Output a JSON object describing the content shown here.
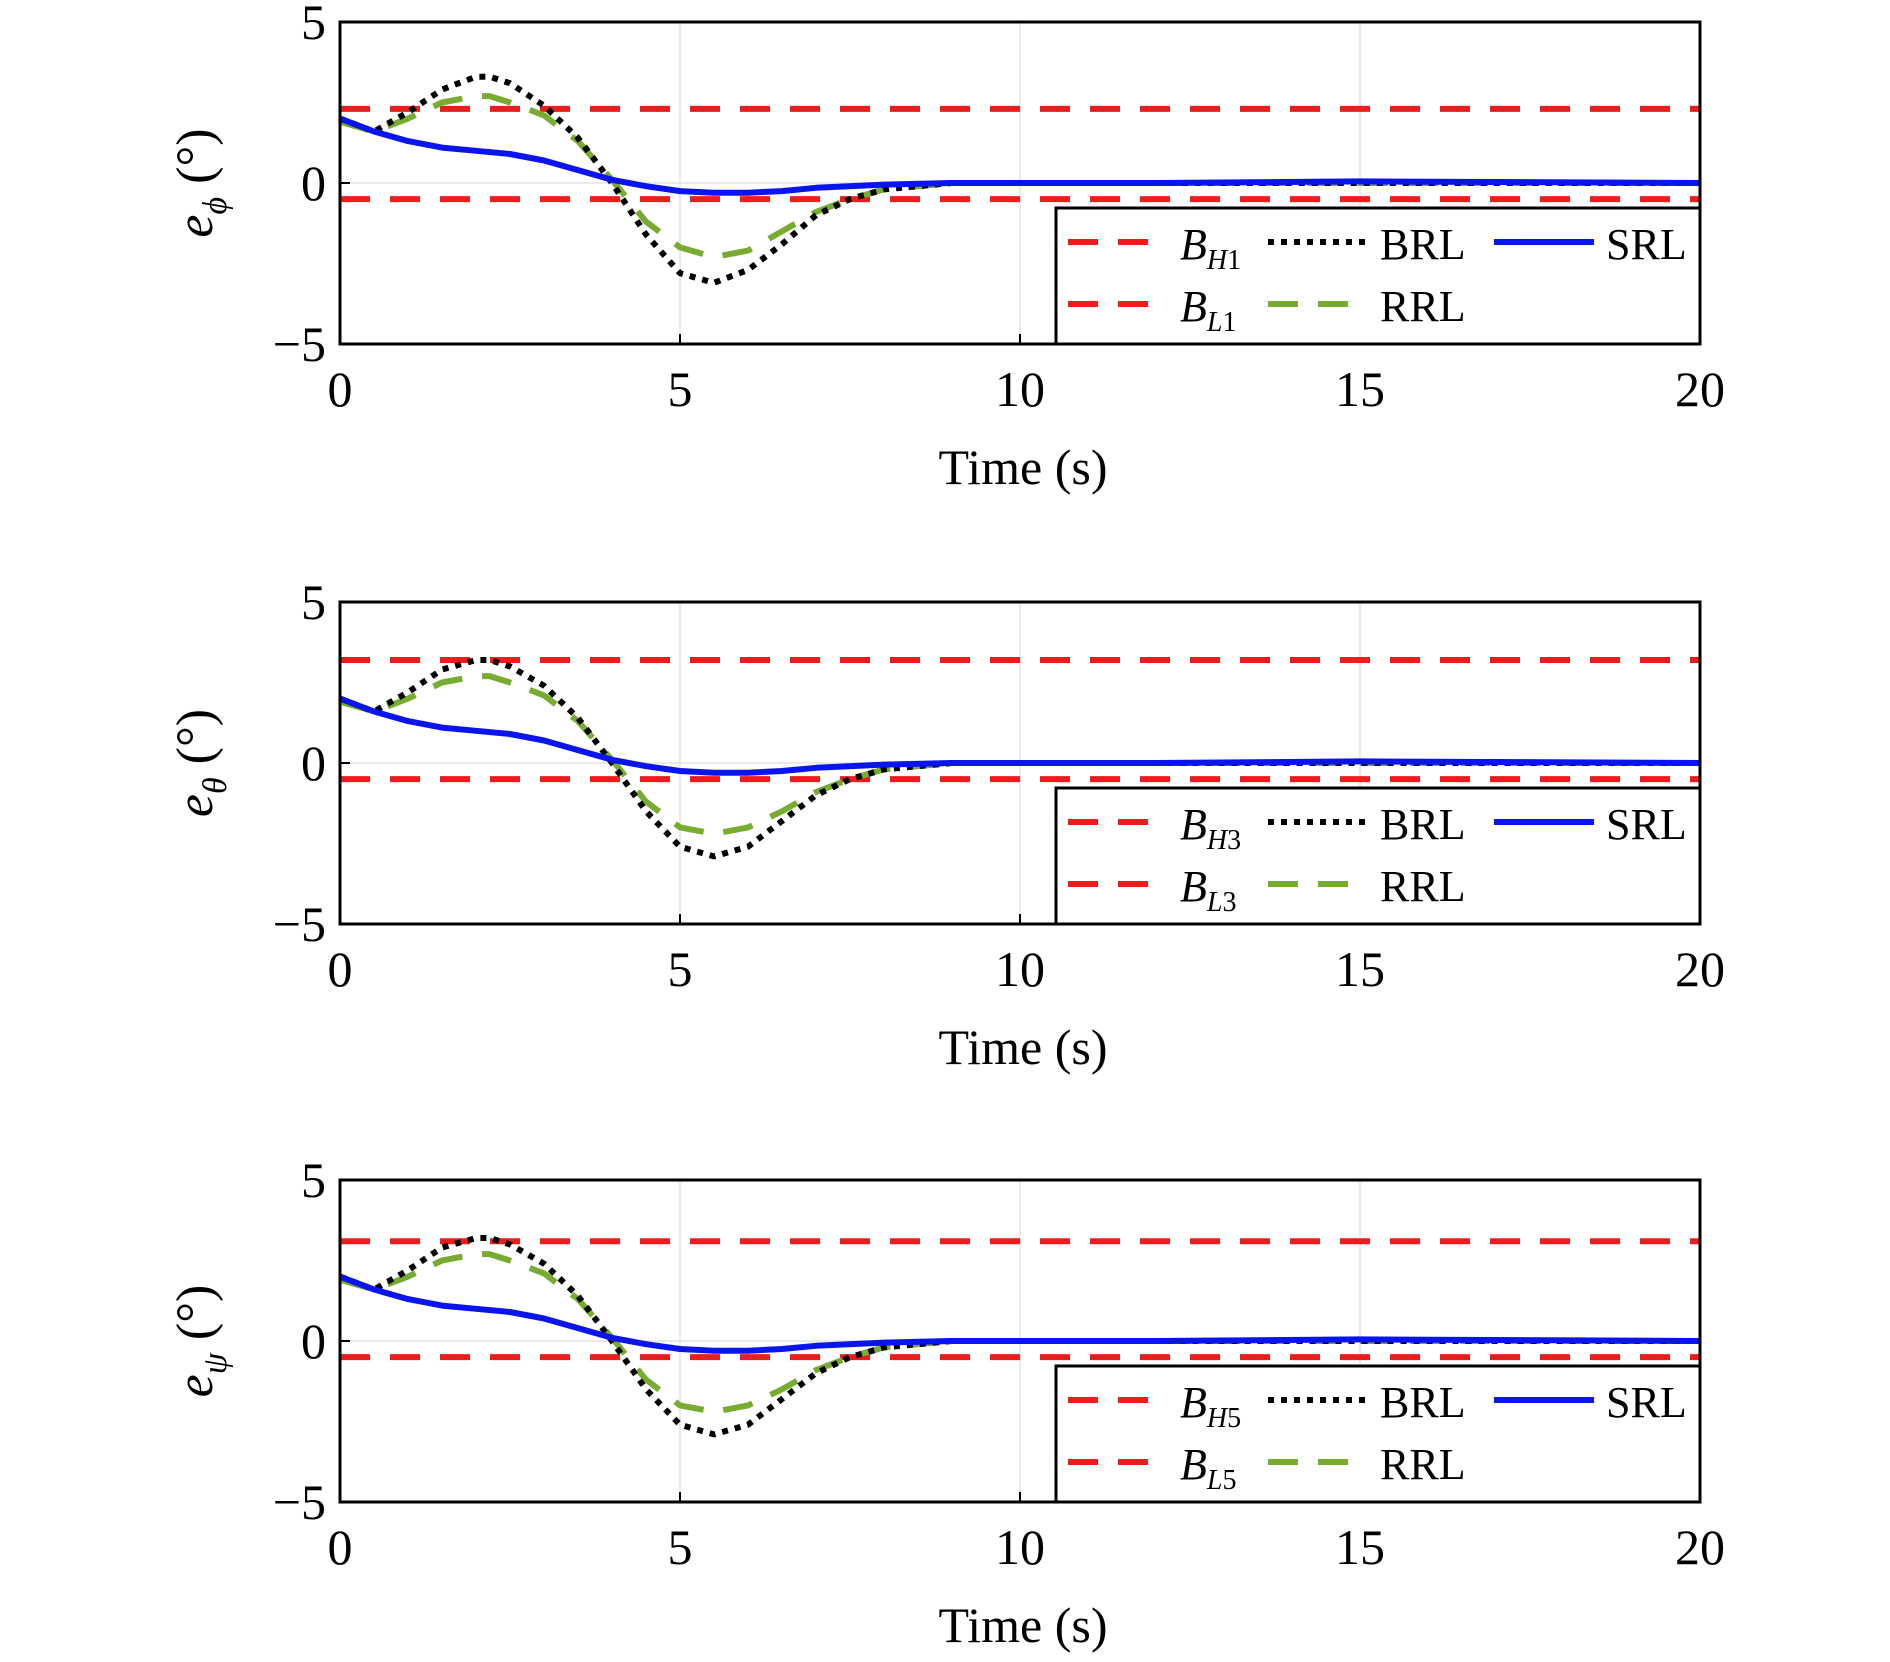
{
  "chart_data": [
    {
      "type": "line",
      "xlabel": "Time (s)",
      "ylabel": {
        "symbol": "e",
        "subscript": "ϕ",
        "unit": "(°)"
      },
      "xlim": [
        0,
        20
      ],
      "ylim": [
        -5,
        5
      ],
      "xticks": [
        "0",
        "5",
        "10",
        "15",
        "20"
      ],
      "yticks": [
        "5",
        "0",
        "−5"
      ],
      "grid": true,
      "legend_position": "bottom-right",
      "series": [
        {
          "name": "B",
          "name_sub": "H1",
          "style": "dashed",
          "color": "#ee1c1c",
          "x": [
            0,
            20
          ],
          "y": [
            2.3,
            2.3
          ]
        },
        {
          "name": "B",
          "name_sub": "L1",
          "style": "dashed",
          "color": "#ee1c1c",
          "x": [
            0,
            20
          ],
          "y": [
            -0.5,
            -0.5
          ]
        },
        {
          "name": "BRL",
          "style": "dotted",
          "color": "#000000",
          "x": [
            0,
            0.5,
            1,
            1.5,
            2,
            2.2,
            2.5,
            3,
            3.5,
            4,
            4.5,
            5,
            5.5,
            6,
            6.5,
            7,
            7.5,
            8,
            9,
            10,
            12,
            15,
            20
          ],
          "y": [
            2.0,
            1.6,
            2.2,
            2.9,
            3.3,
            3.3,
            3.1,
            2.4,
            1.4,
            0.0,
            -1.6,
            -2.8,
            -3.1,
            -2.7,
            -1.9,
            -1.0,
            -0.5,
            -0.2,
            0.0,
            0.0,
            0.0,
            0.0,
            0.0
          ]
        },
        {
          "name": "RRL",
          "style": "dashed",
          "color": "#77ac30",
          "x": [
            0,
            0.5,
            1,
            1.5,
            2,
            2.2,
            2.5,
            3,
            3.5,
            4,
            4.5,
            5,
            5.5,
            6,
            6.5,
            7,
            7.5,
            8,
            9,
            10,
            12,
            15,
            20
          ],
          "y": [
            1.9,
            1.6,
            2.0,
            2.5,
            2.7,
            2.7,
            2.5,
            2.1,
            1.3,
            0.1,
            -1.2,
            -2.0,
            -2.3,
            -2.1,
            -1.5,
            -0.9,
            -0.5,
            -0.2,
            0.0,
            0.0,
            0.0,
            0.0,
            0.0
          ]
        },
        {
          "name": "SRL",
          "style": "solid",
          "color": "#0a14ee",
          "x": [
            0,
            0.5,
            1,
            1.5,
            2,
            2.5,
            3,
            3.5,
            4,
            4.5,
            5,
            5.5,
            6,
            6.5,
            7,
            8,
            9,
            10,
            12,
            15,
            20
          ],
          "y": [
            2.0,
            1.6,
            1.3,
            1.1,
            1.0,
            0.9,
            0.7,
            0.4,
            0.1,
            -0.1,
            -0.25,
            -0.3,
            -0.3,
            -0.25,
            -0.15,
            -0.05,
            0.0,
            0.0,
            0.0,
            0.05,
            0.0
          ]
        }
      ]
    },
    {
      "type": "line",
      "xlabel": "Time (s)",
      "ylabel": {
        "symbol": "e",
        "subscript": "θ",
        "unit": "(°)"
      },
      "xlim": [
        0,
        20
      ],
      "ylim": [
        -5,
        5
      ],
      "xticks": [
        "0",
        "5",
        "10",
        "15",
        "20"
      ],
      "yticks": [
        "5",
        "0",
        "−5"
      ],
      "grid": true,
      "legend_position": "bottom-right",
      "series": [
        {
          "name": "B",
          "name_sub": "H3",
          "style": "dashed",
          "color": "#ee1c1c",
          "x": [
            0,
            20
          ],
          "y": [
            3.2,
            3.2
          ]
        },
        {
          "name": "B",
          "name_sub": "L3",
          "style": "dashed",
          "color": "#ee1c1c",
          "x": [
            0,
            20
          ],
          "y": [
            -0.5,
            -0.5
          ]
        },
        {
          "name": "BRL",
          "style": "dotted",
          "color": "#000000",
          "x": [
            0,
            0.5,
            1,
            1.5,
            2,
            2.2,
            2.5,
            3,
            3.5,
            4,
            4.5,
            5,
            5.5,
            6,
            6.5,
            7,
            7.5,
            8,
            9,
            10,
            12,
            15,
            20
          ],
          "y": [
            2.0,
            1.6,
            2.2,
            2.9,
            3.2,
            3.2,
            3.0,
            2.4,
            1.4,
            0.0,
            -1.5,
            -2.6,
            -2.9,
            -2.6,
            -1.8,
            -1.0,
            -0.5,
            -0.2,
            0.0,
            0.0,
            0.0,
            0.0,
            0.0
          ]
        },
        {
          "name": "RRL",
          "style": "dashed",
          "color": "#77ac30",
          "x": [
            0,
            0.5,
            1,
            1.5,
            2,
            2.2,
            2.5,
            3,
            3.5,
            4,
            4.5,
            5,
            5.5,
            6,
            6.5,
            7,
            7.5,
            8,
            9,
            10,
            12,
            15,
            20
          ],
          "y": [
            1.9,
            1.6,
            2.0,
            2.5,
            2.7,
            2.7,
            2.5,
            2.1,
            1.3,
            0.1,
            -1.2,
            -2.0,
            -2.2,
            -2.0,
            -1.5,
            -0.9,
            -0.5,
            -0.2,
            0.0,
            0.0,
            0.0,
            0.0,
            0.0
          ]
        },
        {
          "name": "SRL",
          "style": "solid",
          "color": "#0a14ee",
          "x": [
            0,
            0.5,
            1,
            1.5,
            2,
            2.5,
            3,
            3.5,
            4,
            4.5,
            5,
            5.5,
            6,
            6.5,
            7,
            8,
            9,
            10,
            12,
            15,
            20
          ],
          "y": [
            2.0,
            1.6,
            1.3,
            1.1,
            1.0,
            0.9,
            0.7,
            0.4,
            0.1,
            -0.1,
            -0.25,
            -0.3,
            -0.3,
            -0.25,
            -0.15,
            -0.05,
            0.0,
            0.0,
            0.0,
            0.05,
            0.0
          ]
        }
      ]
    },
    {
      "type": "line",
      "xlabel": "Time (s)",
      "ylabel": {
        "symbol": "e",
        "subscript": "ψ",
        "unit": "(°)"
      },
      "xlim": [
        0,
        20
      ],
      "ylim": [
        -5,
        5
      ],
      "xticks": [
        "0",
        "5",
        "10",
        "15",
        "20"
      ],
      "yticks": [
        "5",
        "0",
        "−5"
      ],
      "grid": true,
      "legend_position": "bottom-right",
      "series": [
        {
          "name": "B",
          "name_sub": "H5",
          "style": "dashed",
          "color": "#ee1c1c",
          "x": [
            0,
            20
          ],
          "y": [
            3.1,
            3.1
          ]
        },
        {
          "name": "B",
          "name_sub": "L5",
          "style": "dashed",
          "color": "#ee1c1c",
          "x": [
            0,
            20
          ],
          "y": [
            -0.5,
            -0.5
          ]
        },
        {
          "name": "BRL",
          "style": "dotted",
          "color": "#000000",
          "x": [
            0,
            0.5,
            1,
            1.5,
            2,
            2.2,
            2.5,
            3,
            3.5,
            4,
            4.5,
            5,
            5.5,
            6,
            6.5,
            7,
            7.5,
            8,
            9,
            10,
            12,
            15,
            20
          ],
          "y": [
            2.0,
            1.6,
            2.2,
            2.9,
            3.2,
            3.2,
            3.0,
            2.4,
            1.4,
            0.0,
            -1.5,
            -2.6,
            -2.9,
            -2.6,
            -1.8,
            -1.0,
            -0.5,
            -0.2,
            0.0,
            0.0,
            0.0,
            0.0,
            0.0
          ]
        },
        {
          "name": "RRL",
          "style": "dashed",
          "color": "#77ac30",
          "x": [
            0,
            0.5,
            1,
            1.5,
            2,
            2.2,
            2.5,
            3,
            3.5,
            4,
            4.5,
            5,
            5.5,
            6,
            6.5,
            7,
            7.5,
            8,
            9,
            10,
            12,
            15,
            20
          ],
          "y": [
            1.9,
            1.6,
            2.0,
            2.5,
            2.7,
            2.7,
            2.5,
            2.1,
            1.3,
            0.1,
            -1.2,
            -2.0,
            -2.2,
            -2.0,
            -1.5,
            -0.9,
            -0.5,
            -0.2,
            0.0,
            0.0,
            0.0,
            0.0,
            0.0
          ]
        },
        {
          "name": "SRL",
          "style": "solid",
          "color": "#0a14ee",
          "x": [
            0,
            0.5,
            1,
            1.5,
            2,
            2.5,
            3,
            3.5,
            4,
            4.5,
            5,
            5.5,
            6,
            6.5,
            7,
            8,
            9,
            10,
            12,
            15,
            20
          ],
          "y": [
            2.0,
            1.6,
            1.3,
            1.1,
            1.0,
            0.9,
            0.7,
            0.4,
            0.1,
            -0.1,
            -0.25,
            -0.3,
            -0.3,
            -0.25,
            -0.15,
            -0.05,
            0.0,
            0.0,
            0.0,
            0.05,
            0.0
          ]
        }
      ]
    }
  ]
}
